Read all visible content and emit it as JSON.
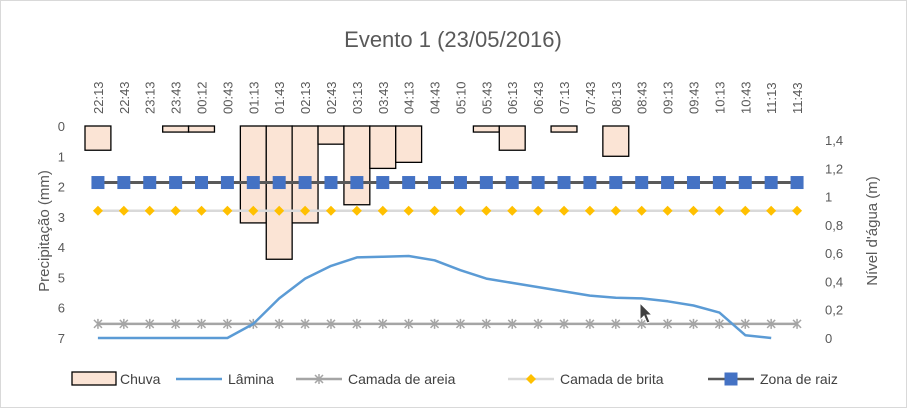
{
  "chart_data": {
    "type": "combo",
    "title": "Evento 1 (23/05/2016)",
    "categories": [
      "22:13",
      "22:43",
      "23:13",
      "23:43",
      "00:12",
      "00:43",
      "01:13",
      "01:43",
      "02:13",
      "02:43",
      "03:13",
      "03:43",
      "04:13",
      "04:43",
      "05:10",
      "05:43",
      "06:13",
      "06:43",
      "07:13",
      "07:43",
      "08:13",
      "08:43",
      "09:13",
      "09:43",
      "10:13",
      "10:43",
      "11:13",
      "11:43"
    ],
    "y_left": {
      "label": "Precipitação (mm)",
      "range": [
        0,
        7
      ],
      "ticks": [
        "0",
        "1",
        "2",
        "3",
        "4",
        "5",
        "6",
        "7"
      ],
      "inverted": true
    },
    "y_right": {
      "label": "Nível d'água (m)",
      "range": [
        0,
        1.5
      ],
      "ticks": [
        "0",
        "0,2",
        "0,4",
        "0,6",
        "0,8",
        "1",
        "1,2",
        "1,4"
      ]
    },
    "series": [
      {
        "name": "Chuva",
        "type": "bar",
        "axis": "left",
        "color": "#fbe4d5",
        "edge": "#000000",
        "values": [
          0.8,
          0,
          0,
          0.2,
          0.2,
          0,
          3.2,
          4.4,
          3.2,
          0.6,
          2.6,
          1.4,
          1.2,
          0,
          0,
          0.2,
          0.8,
          0,
          0.2,
          0,
          1.0,
          0,
          0,
          0,
          0,
          0,
          0,
          0
        ]
      },
      {
        "name": "Lâmina",
        "type": "line",
        "axis": "right",
        "color": "#5b9bd5",
        "points": [
          [
            0,
            0
          ],
          [
            1,
            0
          ],
          [
            2,
            0
          ],
          [
            3,
            0
          ],
          [
            4,
            0
          ],
          [
            5,
            0
          ],
          [
            6,
            0.1
          ],
          [
            7,
            0.28
          ],
          [
            8,
            0.42
          ],
          [
            9,
            0.51
          ],
          [
            10,
            0.57
          ],
          [
            11,
            0.575
          ],
          [
            12,
            0.58
          ],
          [
            13,
            0.55
          ],
          [
            14,
            0.48
          ],
          [
            15,
            0.42
          ],
          [
            16,
            0.39
          ],
          [
            17,
            0.36
          ],
          [
            18,
            0.33
          ],
          [
            19,
            0.3
          ],
          [
            20,
            0.285
          ],
          [
            21,
            0.28
          ],
          [
            22,
            0.26
          ],
          [
            23,
            0.23
          ],
          [
            24,
            0.18
          ],
          [
            25,
            0.02
          ],
          [
            26,
            0
          ]
        ]
      },
      {
        "name": "Camada de areia",
        "type": "line-marker",
        "axis": "right",
        "color": "#a5a5a5",
        "marker": "x",
        "value": 0.1
      },
      {
        "name": "Camada de brita",
        "type": "line-marker",
        "axis": "right",
        "color": "#ffc000",
        "line_color": "#d9d9d9",
        "marker": "diamond",
        "value": 0.9
      },
      {
        "name": "Zona de raiz",
        "type": "line-marker",
        "axis": "right",
        "color": "#4472c4",
        "line_color": "#595959",
        "marker": "square",
        "value": 1.1
      }
    ],
    "legend_position": "bottom",
    "grid": false
  }
}
